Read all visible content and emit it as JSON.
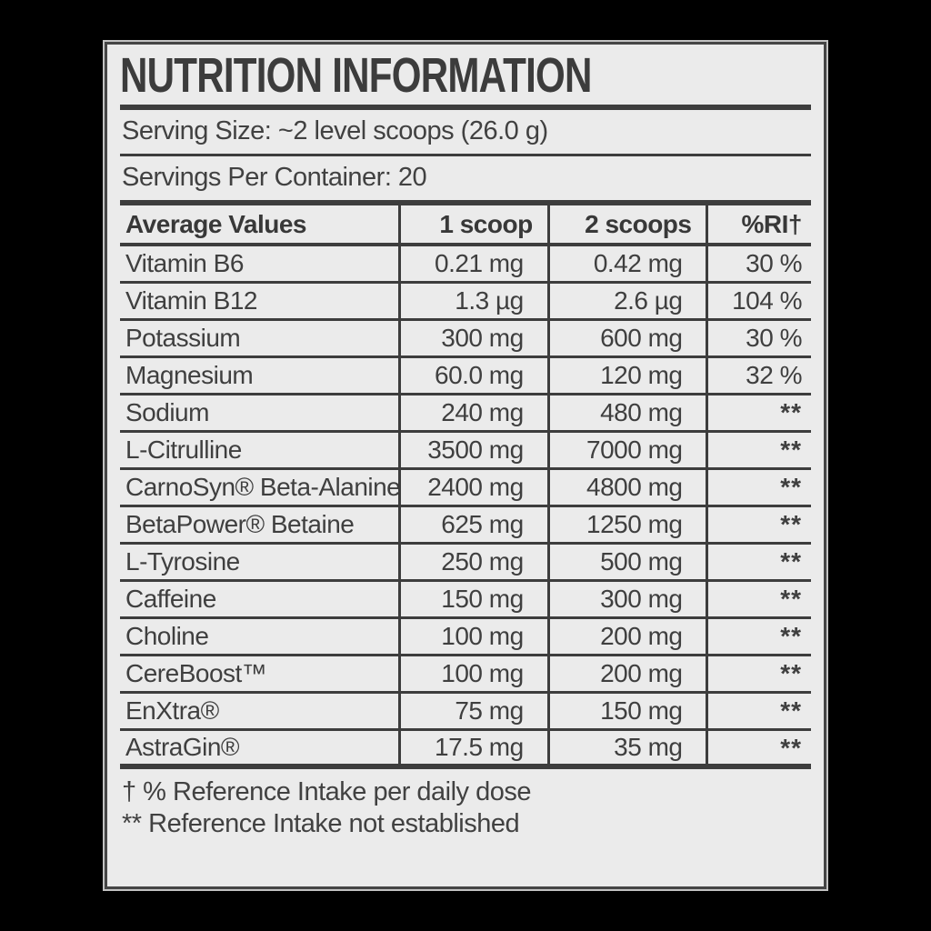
{
  "label": {
    "title": "NUTRITION INFORMATION",
    "serving_size": "Serving Size: ~2 level scoops (26.0 g)",
    "servings_per_container": "Servings Per Container: 20"
  },
  "table": {
    "columns": [
      "Average Values",
      "1 scoop",
      "2 scoops",
      "%RI†"
    ],
    "rows": [
      {
        "name": "Vitamin B6",
        "one_scoop": "0.21 mg",
        "two_scoops": "0.42 mg",
        "ri": "30 %"
      },
      {
        "name": "Vitamin B12",
        "one_scoop": "1.3 µg",
        "two_scoops": "2.6 µg",
        "ri": "104 %"
      },
      {
        "name": "Potassium",
        "one_scoop": "300 mg",
        "two_scoops": "600 mg",
        "ri": "30 %"
      },
      {
        "name": "Magnesium",
        "one_scoop": "60.0 mg",
        "two_scoops": "120 mg",
        "ri": "32 %"
      },
      {
        "name": "Sodium",
        "one_scoop": "240 mg",
        "two_scoops": "480 mg",
        "ri": "**"
      },
      {
        "name": "L-Citrulline",
        "one_scoop": "3500 mg",
        "two_scoops": "7000 mg",
        "ri": "**"
      },
      {
        "name": "CarnoSyn® Beta-Alanine",
        "one_scoop": "2400 mg",
        "two_scoops": "4800 mg",
        "ri": "**"
      },
      {
        "name": "BetaPower® Betaine",
        "one_scoop": "625 mg",
        "two_scoops": "1250 mg",
        "ri": "**"
      },
      {
        "name": "L-Tyrosine",
        "one_scoop": "250 mg",
        "two_scoops": "500 mg",
        "ri": "**"
      },
      {
        "name": "Caffeine",
        "one_scoop": "150 mg",
        "two_scoops": "300 mg",
        "ri": "**"
      },
      {
        "name": "Choline",
        "one_scoop": "100 mg",
        "two_scoops": "200 mg",
        "ri": "**"
      },
      {
        "name": "CereBoost™",
        "one_scoop": "100 mg",
        "two_scoops": "200 mg",
        "ri": "**"
      },
      {
        "name": "EnXtra®",
        "one_scoop": "75 mg",
        "two_scoops": "150 mg",
        "ri": "**"
      },
      {
        "name": "AstraGin®",
        "one_scoop": "17.5 mg",
        "two_scoops": "35 mg",
        "ri": "**"
      }
    ]
  },
  "footnotes": [
    "† % Reference Intake per daily dose",
    "** Reference Intake not established"
  ],
  "colors": {
    "page_background": "#000000",
    "label_background": "#ebebeb",
    "ink": "#3d3d3d"
  }
}
